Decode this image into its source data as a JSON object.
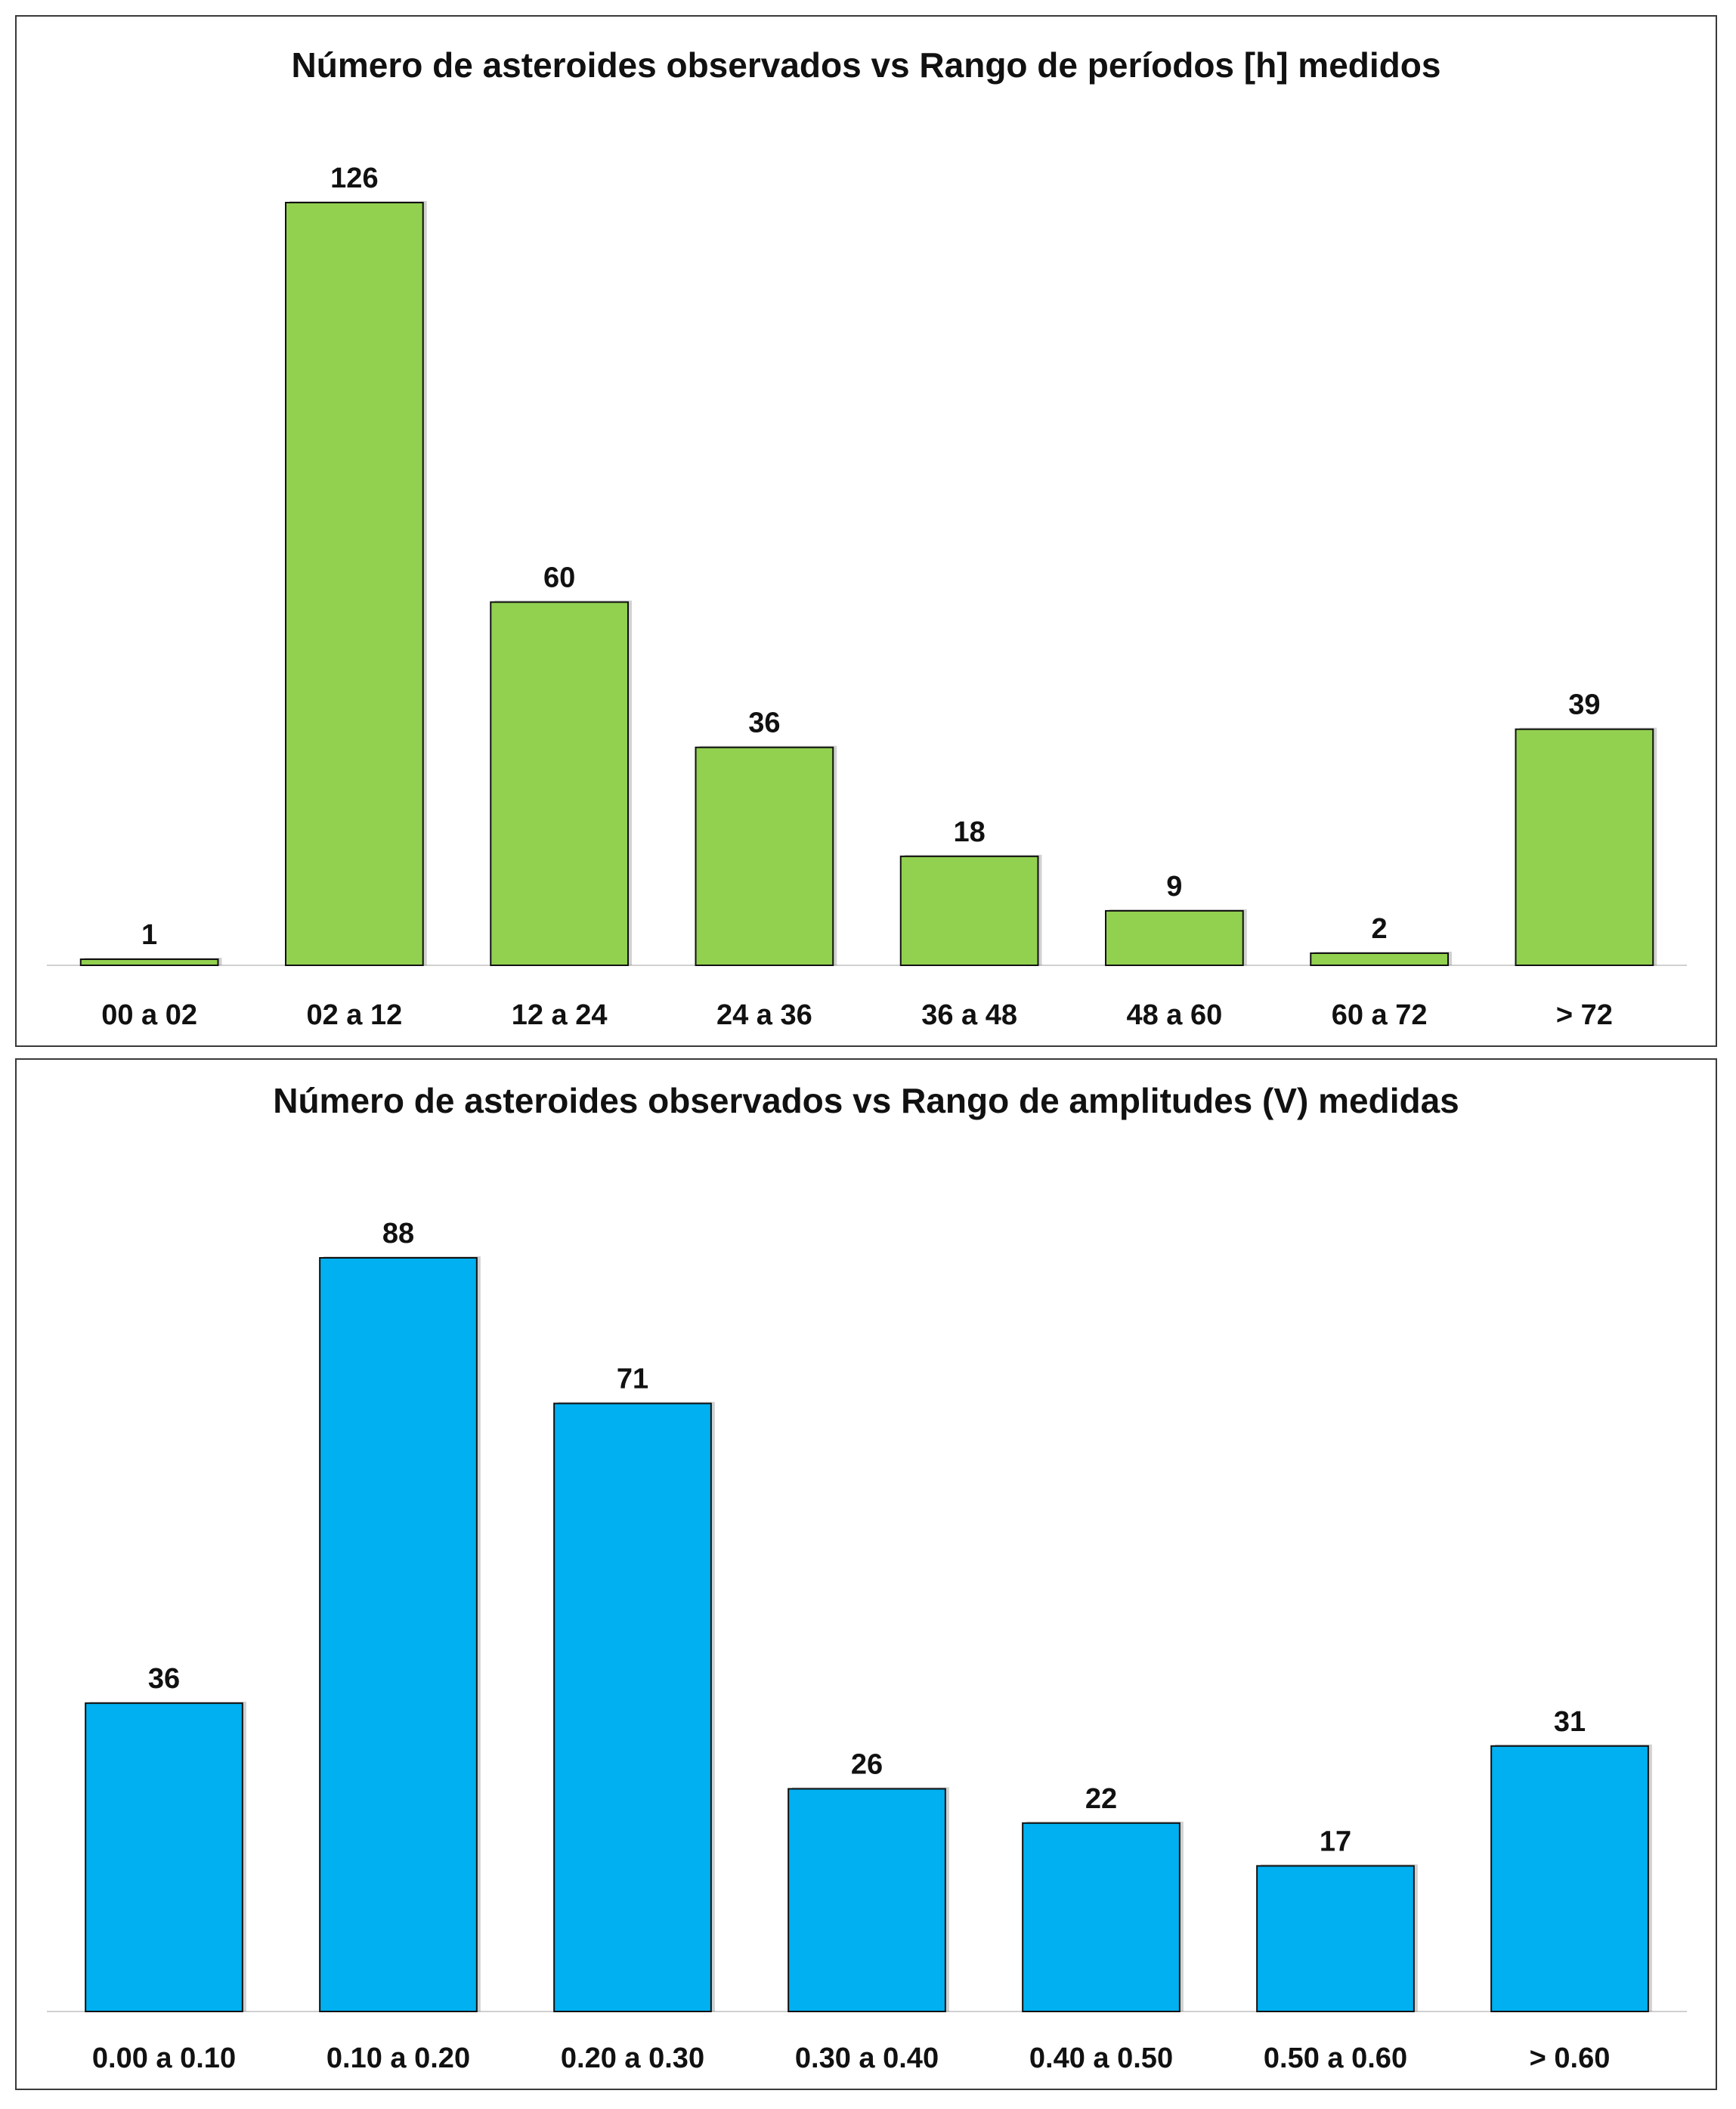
{
  "chart_data": [
    {
      "type": "bar",
      "title": "Número de asteroides observados vs Rango de períodos [h] medidos",
      "categories": [
        "00 a 02",
        "02 a 12",
        "12 a 24",
        "24 a 36",
        "36 a 48",
        "48 a 60",
        "60 a 72",
        "> 72"
      ],
      "values": [
        1,
        126,
        60,
        36,
        18,
        9,
        2,
        39
      ],
      "data_labels": [
        "1",
        "126",
        "60",
        "36",
        "18",
        "9",
        "2",
        "39"
      ],
      "ylim": [
        0,
        126
      ],
      "grid": false,
      "legend": "none",
      "bar_color": "#92d050"
    },
    {
      "type": "bar",
      "title": "Número de asteroides observados vs Rango de amplitudes (V) medidas",
      "categories": [
        "0.00 a 0.10",
        "0.10 a 0.20",
        "0.20 a 0.30",
        "0.30 a 0.40",
        "0.40 a 0.50",
        "0.50 a 0.60",
        "> 0.60"
      ],
      "values": [
        36,
        88,
        71,
        26,
        22,
        17,
        31
      ],
      "data_labels": [
        "36",
        "88",
        "71",
        "26",
        "22",
        "17",
        "31"
      ],
      "ylim": [
        0,
        88
      ],
      "grid": false,
      "legend": "none",
      "bar_color": "#00b0f0"
    }
  ]
}
